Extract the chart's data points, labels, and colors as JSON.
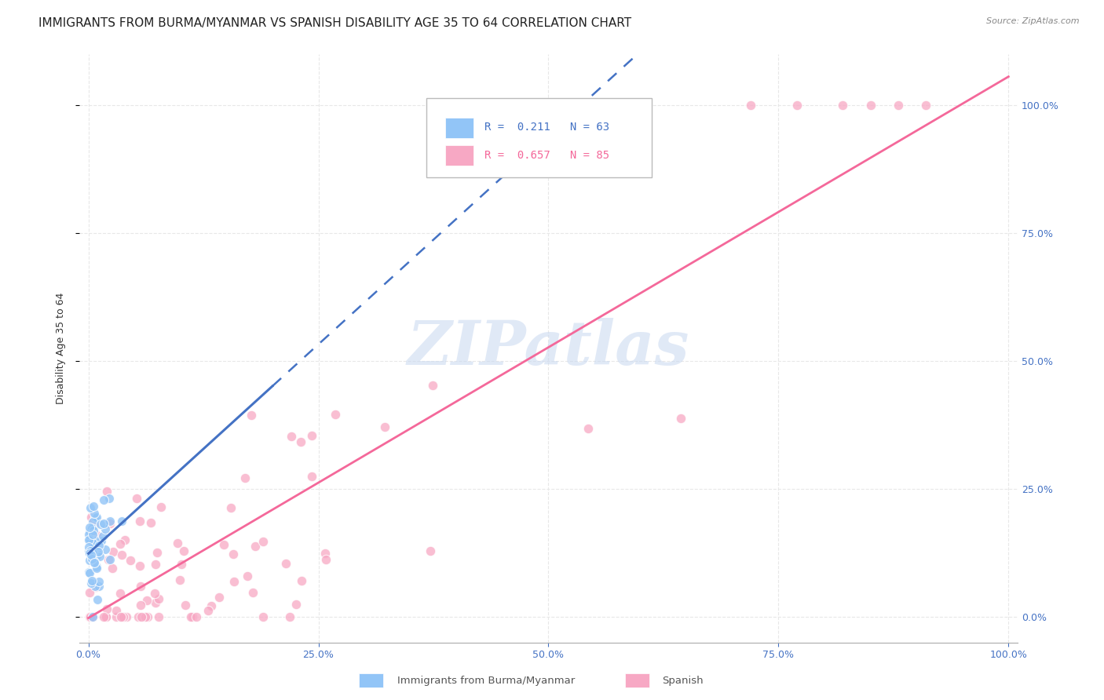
{
  "title": "IMMIGRANTS FROM BURMA/MYANMAR VS SPANISH DISABILITY AGE 35 TO 64 CORRELATION CHART",
  "source": "Source: ZipAtlas.com",
  "ylabel": "Disability Age 35 to 64",
  "r_blue": 0.211,
  "n_blue": 63,
  "r_pink": 0.657,
  "n_pink": 85,
  "blue_label": "Immigrants from Burma/Myanmar",
  "pink_label": "Spanish",
  "watermark": "ZIPatlas",
  "background_color": "#ffffff",
  "grid_color": "#e8e8e8",
  "blue_color": "#92c5f7",
  "pink_color": "#f7a8c4",
  "blue_line_color": "#4472c4",
  "pink_line_color": "#f4689a",
  "watermark_color": "#c8d8f0",
  "title_fontsize": 11,
  "axis_fontsize": 9,
  "legend_fontsize": 10,
  "blue_r_color": "#4472c4",
  "pink_r_color": "#f4689a"
}
